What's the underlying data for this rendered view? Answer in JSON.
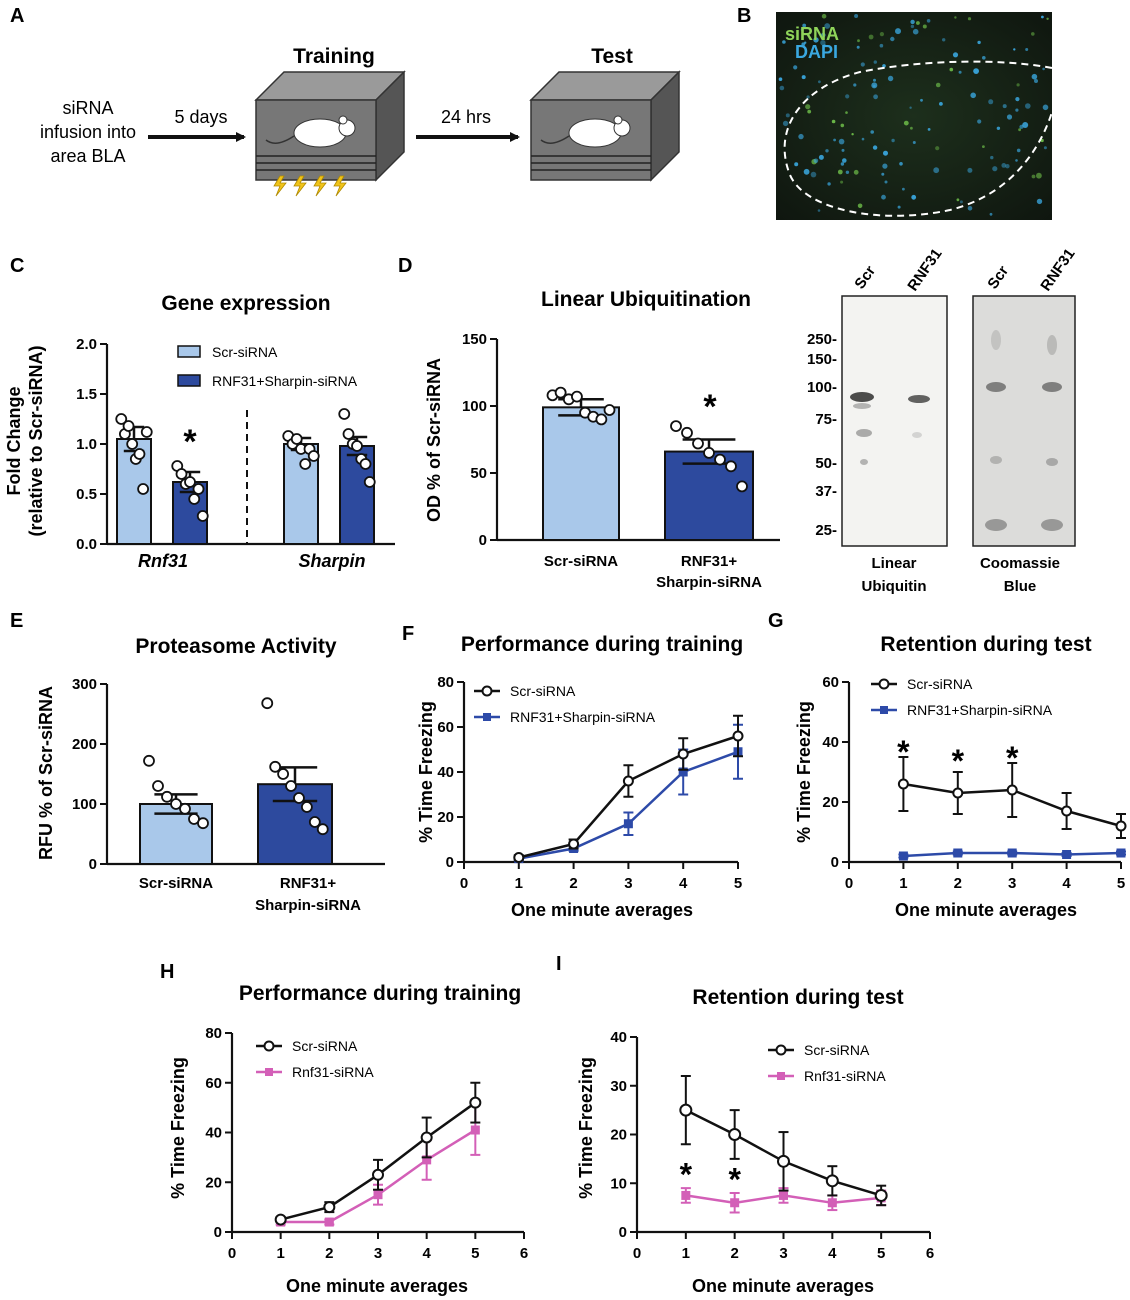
{
  "panels": {
    "A": {
      "label": "A",
      "infusion_line1": "siRNA",
      "infusion_line2": "infusion into",
      "infusion_line3": "area BLA",
      "delay1": "5 days",
      "training": "Training",
      "delay2": "24 hrs",
      "test": "Test"
    },
    "B": {
      "label": "B",
      "stain1": "siRNA",
      "stain2": "DAPI",
      "stain1_color": "#8fd45a",
      "stain2_color": "#3aa8e0"
    },
    "D_blot": {
      "lane_scr": "Scr",
      "lane_rnf": "RNF31",
      "markers": [
        "250-",
        "150-",
        "100-",
        "75-",
        "50-",
        "37-",
        "25-"
      ],
      "caption1_line1": "Linear",
      "caption1_line2": "Ubiquitin",
      "caption2_line1": "Coomassie",
      "caption2_line2": "Blue"
    }
  },
  "colors": {
    "scr_bar": "#a9c8ea",
    "rnf_bar": "#2d4a9e",
    "blue_line": "#2d4aa8",
    "pink_line": "#d35fb7",
    "black": "#111111"
  },
  "chart_data": [
    {
      "id": "C",
      "label": "C",
      "type": "bar",
      "title": "Gene expression",
      "ylabel_line1": "Fold Change",
      "ylabel_line2": "(relative to Scr-siRNA)",
      "yticks": [
        "0.0",
        "0.5",
        "1.0",
        "1.5",
        "2.0"
      ],
      "ylim": [
        0,
        2.0
      ],
      "groups": [
        "Rnf31",
        "Sharpin"
      ],
      "series": [
        {
          "name": "Scr-siRNA",
          "values": [
            1.05,
            1.0
          ],
          "sem": [
            0.12,
            0.06
          ]
        },
        {
          "name": "RNF31+Sharpin-siRNA",
          "values": [
            0.62,
            0.98
          ],
          "sem": [
            0.1,
            0.09
          ]
        }
      ],
      "points": {
        "Rnf31_scr": [
          1.25,
          1.1,
          1.18,
          1.0,
          0.85,
          0.9,
          0.55,
          1.12
        ],
        "Rnf31_rnf": [
          0.78,
          0.7,
          0.6,
          0.62,
          0.45,
          0.55,
          0.28
        ],
        "Sharpin_scr": [
          1.08,
          1.0,
          1.05,
          0.95,
          0.8,
          0.95,
          0.88
        ],
        "Sharpin_rnf": [
          1.3,
          1.1,
          1.0,
          0.98,
          0.85,
          0.8,
          0.62
        ]
      },
      "asterisk": "*"
    },
    {
      "id": "D",
      "label": "D",
      "type": "bar",
      "title": "Linear Ubiquitination",
      "ylabel": "OD % of Scr-siRNA",
      "yticks": [
        "0",
        "50",
        "100",
        "150"
      ],
      "ylim": [
        0,
        150
      ],
      "categories_line1": [
        "Scr-siRNA",
        "RNF31+"
      ],
      "categories_line2": [
        "",
        "Sharpin-siRNA"
      ],
      "values": [
        99,
        66
      ],
      "sem": [
        6,
        9
      ],
      "points": [
        [
          108,
          110,
          105,
          107,
          95,
          92,
          90,
          97
        ],
        [
          85,
          80,
          72,
          65,
          60,
          55,
          40
        ]
      ],
      "asterisk": "*"
    },
    {
      "id": "E",
      "label": "E",
      "type": "bar",
      "title": "Proteasome Activity",
      "ylabel": "RFU % of Scr-siRNA",
      "yticks": [
        "0",
        "100",
        "200",
        "300"
      ],
      "ylim": [
        0,
        300
      ],
      "categories_line1": [
        "Scr-siRNA",
        "RNF31+"
      ],
      "categories_line2": [
        "",
        "Sharpin-siRNA"
      ],
      "values": [
        100,
        133
      ],
      "sem": [
        16,
        28
      ],
      "points": [
        [
          172,
          130,
          112,
          100,
          92,
          75,
          68
        ],
        [
          268,
          162,
          150,
          130,
          110,
          95,
          70,
          58
        ]
      ]
    },
    {
      "id": "F",
      "label": "F",
      "type": "line",
      "title": "Performance during training",
      "ylabel": "% Time Freezing",
      "xlabel": "One minute averages",
      "xticks": [
        "0",
        "1",
        "2",
        "3",
        "4",
        "5"
      ],
      "xlim": [
        0,
        5
      ],
      "yticks": [
        "0",
        "20",
        "40",
        "60",
        "80"
      ],
      "ylim": [
        0,
        80
      ],
      "x": [
        1,
        2,
        3,
        4,
        5
      ],
      "series": [
        {
          "name": "Scr-siRNA",
          "values": [
            2,
            8,
            36,
            48,
            56
          ],
          "sem": [
            1,
            2,
            7,
            7,
            9
          ]
        },
        {
          "name": "RNF31+Sharpin-siRNA",
          "values": [
            1.5,
            6,
            17,
            40,
            49
          ],
          "sem": [
            0.5,
            1,
            5,
            10,
            12
          ]
        }
      ]
    },
    {
      "id": "G",
      "label": "G",
      "type": "line",
      "title": "Retention during test",
      "ylabel": "% Time Freezing",
      "xlabel": "One minute averages",
      "xticks": [
        "0",
        "1",
        "2",
        "3",
        "4",
        "5"
      ],
      "xlim": [
        0,
        5
      ],
      "yticks": [
        "0",
        "20",
        "40",
        "60"
      ],
      "ylim": [
        0,
        60
      ],
      "x": [
        1,
        2,
        3,
        4,
        5
      ],
      "series": [
        {
          "name": "Scr-siRNA",
          "values": [
            26,
            23,
            24,
            17,
            12
          ],
          "sem": [
            9,
            7,
            9,
            6,
            4
          ]
        },
        {
          "name": "RNF31+Sharpin-siRNA",
          "values": [
            2,
            3,
            3,
            2.5,
            3
          ],
          "sem": [
            0.5,
            0.5,
            0.5,
            0.5,
            0.5
          ]
        }
      ],
      "asterisks": [
        "*",
        "*",
        "*"
      ]
    },
    {
      "id": "H",
      "label": "H",
      "type": "line",
      "title": "Performance during training",
      "ylabel": "% Time Freezing",
      "xlabel": "One minute averages",
      "xticks": [
        "0",
        "1",
        "2",
        "3",
        "4",
        "5",
        "6"
      ],
      "xlim": [
        0,
        6
      ],
      "yticks": [
        "0",
        "20",
        "40",
        "60",
        "80"
      ],
      "ylim": [
        0,
        80
      ],
      "x": [
        1,
        2,
        3,
        4,
        5
      ],
      "series": [
        {
          "name": "Scr-siRNA",
          "values": [
            5,
            10,
            23,
            38,
            52
          ],
          "sem": [
            1,
            2,
            6,
            8,
            8
          ]
        },
        {
          "name": "Rnf31-siRNA",
          "values": [
            4,
            4,
            15,
            29,
            41
          ],
          "sem": [
            1,
            1,
            4,
            8,
            10
          ]
        }
      ]
    },
    {
      "id": "I",
      "label": "I",
      "type": "line",
      "title": "Retention during test",
      "ylabel": "% Time Freezing",
      "xlabel": "One minute averages",
      "xticks": [
        "0",
        "1",
        "2",
        "3",
        "4",
        "5",
        "6"
      ],
      "xlim": [
        0,
        6
      ],
      "yticks": [
        "0",
        "10",
        "20",
        "30",
        "40"
      ],
      "ylim": [
        0,
        40
      ],
      "x": [
        1,
        2,
        3,
        4,
        5
      ],
      "series": [
        {
          "name": "Scr-siRNA",
          "values": [
            25,
            20,
            14.5,
            10.5,
            7.5
          ],
          "sem": [
            7,
            5,
            6,
            3,
            2
          ]
        },
        {
          "name": "Rnf31-siRNA",
          "values": [
            7.5,
            6,
            7.5,
            6,
            7
          ],
          "sem": [
            1.5,
            2,
            1.5,
            1.5,
            1.5
          ]
        }
      ],
      "asterisks": [
        "*",
        "*"
      ]
    }
  ]
}
